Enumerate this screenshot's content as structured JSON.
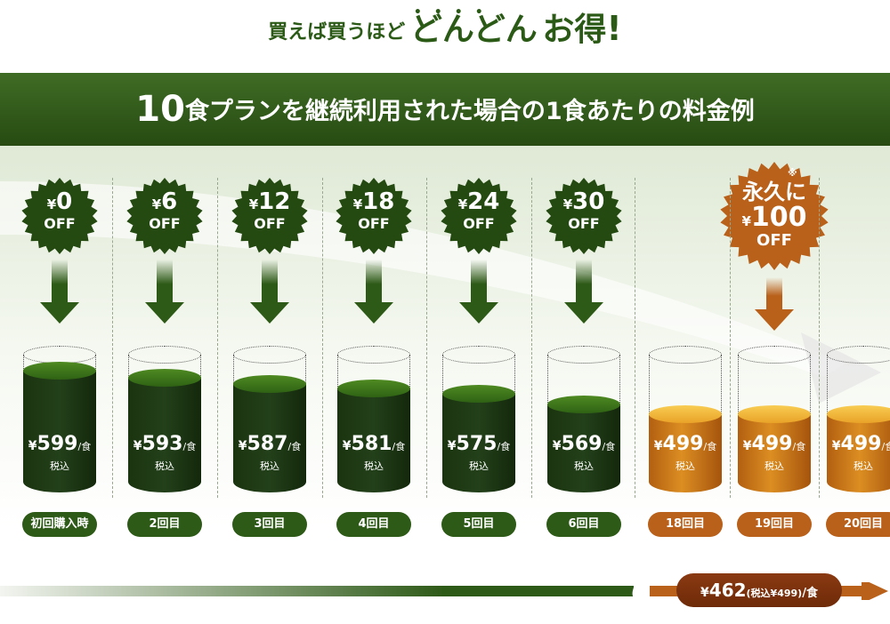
{
  "title": {
    "prefix": "買えば買うほど",
    "emph": "どんどん",
    "suffix": "お得",
    "excl": "!",
    "dots": "••••"
  },
  "banner": {
    "num": "10",
    "text": "食プランを継続利用された場合の1食あたりの料金例"
  },
  "yen": "¥",
  "off_label": "OFF",
  "per_meal": "/食",
  "tax_label": "税込",
  "columns": [
    {
      "discount": "0",
      "price": "599",
      "label": "初回購入時",
      "fill": 0.9,
      "theme": "green"
    },
    {
      "discount": "6",
      "price": "593",
      "label": "2回目",
      "fill": 0.85,
      "theme": "green"
    },
    {
      "discount": "12",
      "price": "587",
      "label": "3回目",
      "fill": 0.8,
      "theme": "green"
    },
    {
      "discount": "18",
      "price": "581",
      "label": "4回目",
      "fill": 0.77,
      "theme": "green"
    },
    {
      "discount": "24",
      "price": "575",
      "label": "5回目",
      "fill": 0.73,
      "theme": "green"
    },
    {
      "discount": "30",
      "price": "569",
      "label": "6回目",
      "fill": 0.65,
      "theme": "green"
    },
    {
      "discount": "",
      "price": "499",
      "label": "18回目",
      "fill": 0.58,
      "theme": "gold"
    },
    {
      "discount": "100",
      "price": "499",
      "label": "19回目",
      "fill": 0.58,
      "theme": "gold"
    },
    {
      "discount": "",
      "price": "499",
      "label": "20回目",
      "fill": 0.58,
      "theme": "gold"
    }
  ],
  "permanent": {
    "kanji": "永久に",
    "note": "※",
    "amount": "100"
  },
  "final": {
    "price": "462",
    "sub": "(税込¥499)",
    "unit": "/食"
  },
  "colors": {
    "green_dark": "#244a12",
    "gold": "#e9a228",
    "brown": "#b9601a"
  }
}
